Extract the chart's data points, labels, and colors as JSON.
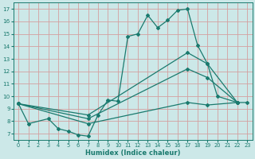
{
  "bg_color": "#cce8e8",
  "grid_color": "#d4a0a0",
  "line_color": "#1a7a6e",
  "xlabel": "Humidex (Indice chaleur)",
  "xlim": [
    -0.5,
    23.5
  ],
  "ylim": [
    6.5,
    17.5
  ],
  "xticks": [
    0,
    1,
    2,
    3,
    4,
    5,
    6,
    7,
    8,
    9,
    10,
    11,
    12,
    13,
    14,
    15,
    16,
    17,
    18,
    19,
    20,
    21,
    22,
    23
  ],
  "yticks": [
    7,
    8,
    9,
    10,
    11,
    12,
    13,
    14,
    15,
    16,
    17
  ],
  "lines": [
    {
      "x": [
        0,
        1,
        3,
        4,
        5,
        6,
        7,
        8,
        9,
        10,
        11,
        12,
        13,
        14,
        15,
        16,
        17,
        18,
        19,
        20,
        22,
        23
      ],
      "y": [
        9.4,
        7.8,
        8.2,
        7.4,
        7.2,
        6.9,
        6.8,
        8.5,
        9.7,
        9.6,
        14.8,
        15.0,
        16.5,
        15.5,
        16.1,
        16.9,
        17.0,
        14.1,
        12.6,
        10.0,
        9.5,
        9.5
      ]
    },
    {
      "x": [
        0,
        7,
        17,
        19,
        22
      ],
      "y": [
        9.4,
        8.5,
        13.5,
        12.6,
        9.5
      ]
    },
    {
      "x": [
        0,
        7,
        17,
        19,
        22
      ],
      "y": [
        9.4,
        8.2,
        12.2,
        11.5,
        9.5
      ]
    },
    {
      "x": [
        0,
        7,
        17,
        19,
        22
      ],
      "y": [
        9.4,
        7.8,
        9.5,
        9.3,
        9.5
      ]
    }
  ]
}
